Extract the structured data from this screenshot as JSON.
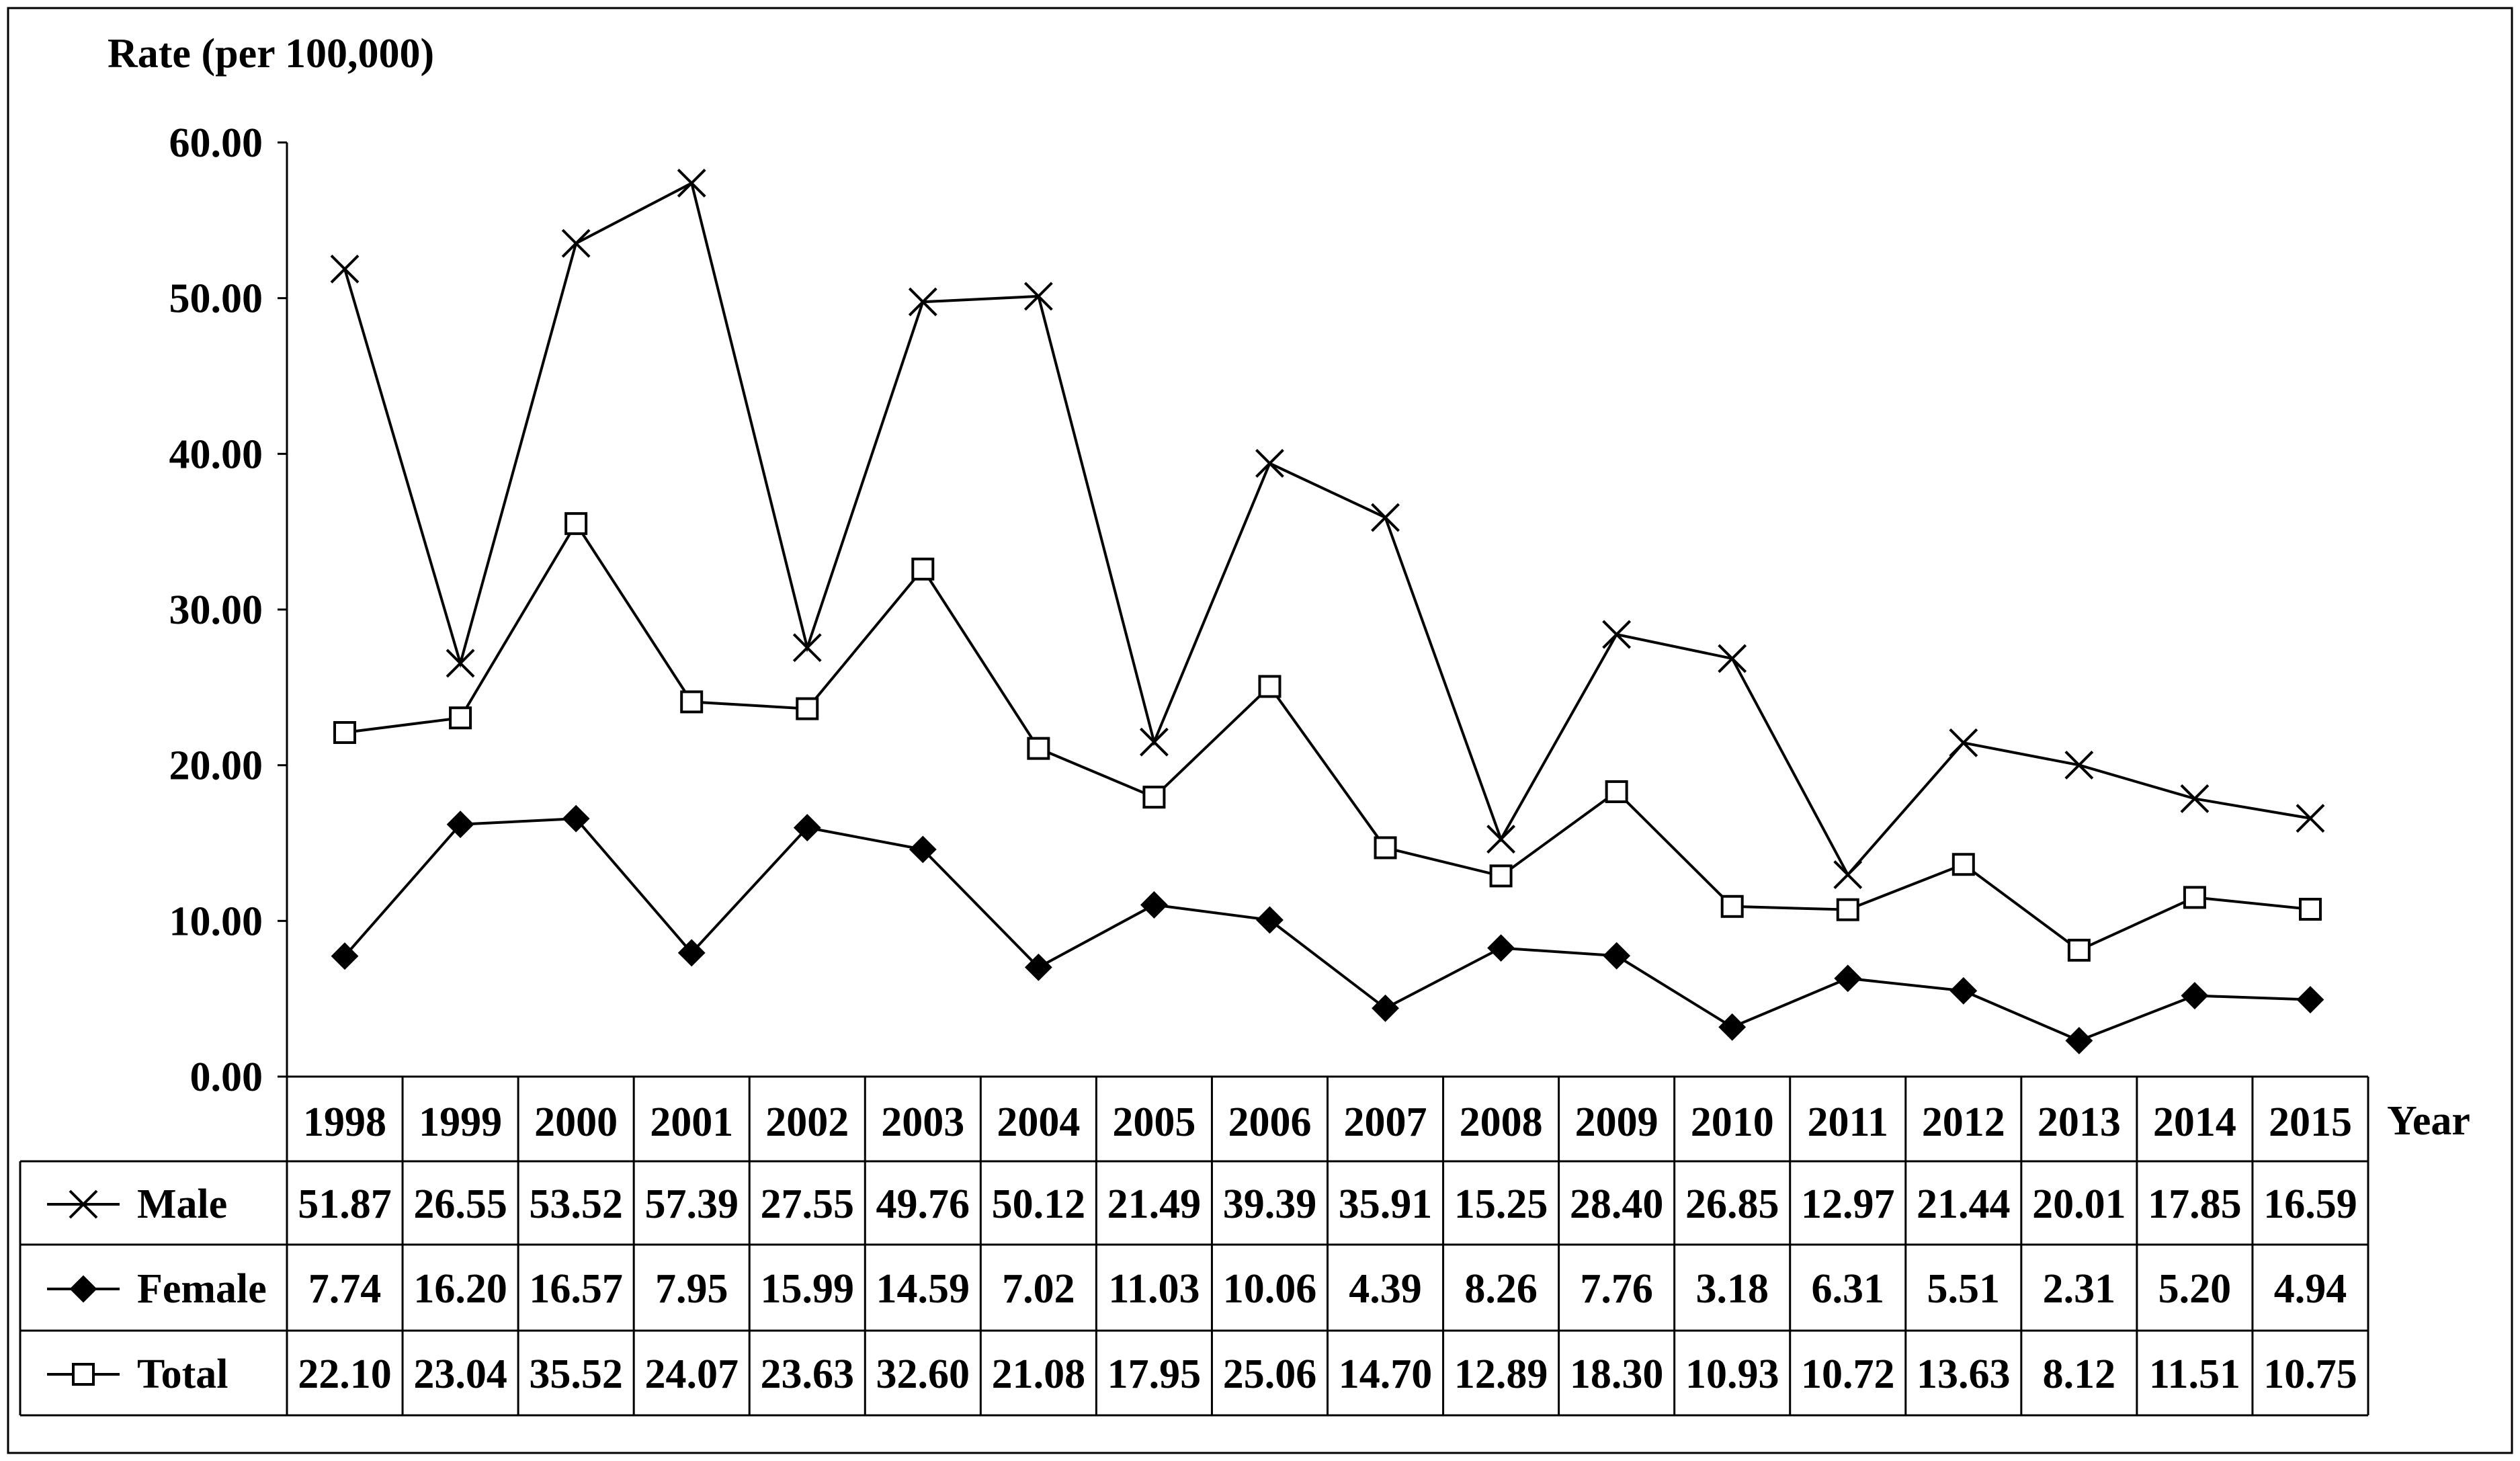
{
  "chart_data": {
    "type": "line",
    "title": "",
    "ylabel": "Rate (per 100,000)",
    "xlabel": "Year",
    "ylim": [
      0,
      60
    ],
    "yticks": [
      "0.00",
      "10.00",
      "20.00",
      "30.00",
      "40.00",
      "50.00",
      "60.00"
    ],
    "categories": [
      "1998",
      "1999",
      "2000",
      "2001",
      "2002",
      "2003",
      "2004",
      "2005",
      "2006",
      "2007",
      "2008",
      "2009",
      "2010",
      "2011",
      "2012",
      "2013",
      "2014",
      "2015"
    ],
    "grid": false,
    "legend": "data table below chart",
    "series": [
      {
        "name": "Male",
        "marker": "x",
        "values": [
          51.87,
          26.55,
          53.52,
          57.39,
          27.55,
          49.76,
          50.12,
          21.49,
          39.39,
          35.91,
          15.25,
          28.4,
          26.85,
          12.97,
          21.44,
          20.01,
          17.85,
          16.59
        ],
        "labels": [
          "51.87",
          "26.55",
          "53.52",
          "57.39",
          "27.55",
          "49.76",
          "50.12",
          "21.49",
          "39.39",
          "35.91",
          "15.25",
          "28.40",
          "26.85",
          "12.97",
          "21.44",
          "20.01",
          "17.85",
          "16.59"
        ]
      },
      {
        "name": "Female",
        "marker": "diamond",
        "values": [
          7.74,
          16.2,
          16.57,
          7.95,
          15.99,
          14.59,
          7.02,
          11.03,
          10.06,
          4.39,
          8.26,
          7.76,
          3.18,
          6.31,
          5.51,
          2.31,
          5.2,
          4.94
        ],
        "labels": [
          "7.74",
          "16.20",
          "16.57",
          "7.95",
          "15.99",
          "14.59",
          "7.02",
          "11.03",
          "10.06",
          "4.39",
          "8.26",
          "7.76",
          "3.18",
          "6.31",
          "5.51",
          "2.31",
          "5.20",
          "4.94"
        ]
      },
      {
        "name": "Total",
        "marker": "square",
        "values": [
          22.1,
          23.04,
          35.52,
          24.07,
          23.63,
          32.6,
          21.08,
          17.95,
          25.06,
          14.7,
          12.89,
          18.3,
          10.93,
          10.72,
          13.63,
          8.12,
          11.51,
          10.75
        ],
        "labels": [
          "22.10",
          "23.04",
          "35.52",
          "24.07",
          "23.63",
          "32.60",
          "21.08",
          "17.95",
          "25.06",
          "14.70",
          "12.89",
          "18.30",
          "10.93",
          "10.72",
          "13.63",
          "8.12",
          "11.51",
          "10.75"
        ]
      }
    ],
    "colors": {
      "line": "#000000",
      "background": "#ffffff"
    }
  }
}
